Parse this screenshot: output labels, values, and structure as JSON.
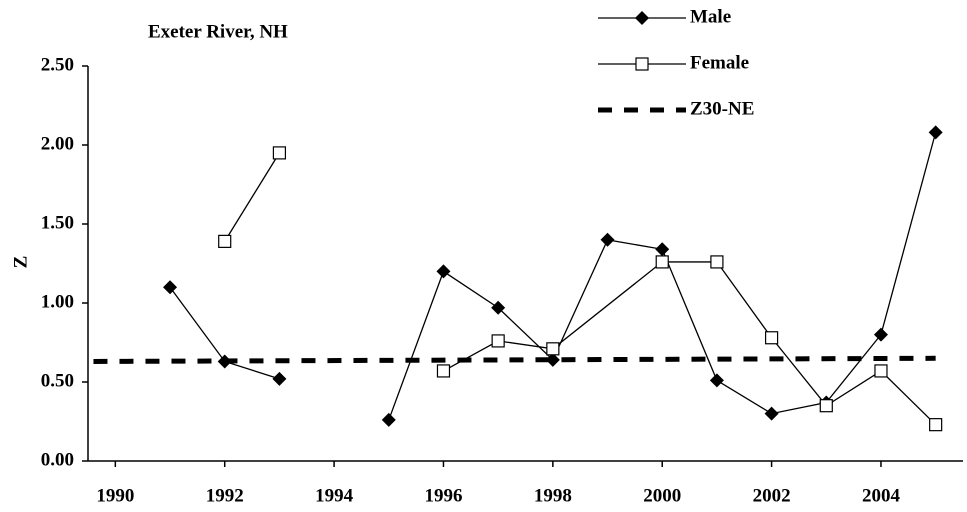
{
  "chart_data": {
    "type": "line",
    "title": "Exeter River, NH",
    "y_label": "Z",
    "series": [
      {
        "name": "Male",
        "color": "#000000",
        "marker": "diamond",
        "x": [
          1991,
          1992,
          1993,
          1994,
          1995,
          1996,
          1997,
          1998,
          1999,
          2000,
          2001,
          2002,
          2003,
          2004,
          2005
        ],
        "values": [
          1.1,
          0.63,
          0.52,
          null,
          0.26,
          1.2,
          0.97,
          0.64,
          1.4,
          1.34,
          0.51,
          0.3,
          0.37,
          0.8,
          2.08
        ]
      },
      {
        "name": "Female",
        "color": "#000000",
        "marker": "square",
        "x": [
          1992,
          1993,
          1994,
          1996,
          1997,
          1998,
          2000,
          2001,
          2002,
          2003,
          2004,
          2005
        ],
        "values": [
          1.39,
          1.95,
          null,
          0.57,
          0.76,
          0.71,
          1.26,
          1.26,
          0.78,
          0.35,
          0.57,
          0.23
        ]
      },
      {
        "name": "Z30-NE",
        "color": "#000000",
        "marker": "dash",
        "x": [
          1989.6,
          2005
        ],
        "values": [
          0.63,
          0.65
        ]
      }
    ],
    "xlim": [
      1989.5,
      2005.5
    ],
    "xticks": [
      1990,
      1992,
      1994,
      1996,
      1998,
      2000,
      2002,
      2004
    ],
    "ylim": [
      0,
      2.5
    ],
    "yticks": [
      {
        "value": 0,
        "label": "0.00"
      },
      {
        "value": 0.5,
        "label": "0.50"
      },
      {
        "value": 1,
        "label": "1.00"
      },
      {
        "value": 1.5,
        "label": "1.50"
      },
      {
        "value": 2,
        "label": "2.00"
      },
      {
        "value": 2.5,
        "label": "2.50"
      }
    ],
    "grid": false
  }
}
